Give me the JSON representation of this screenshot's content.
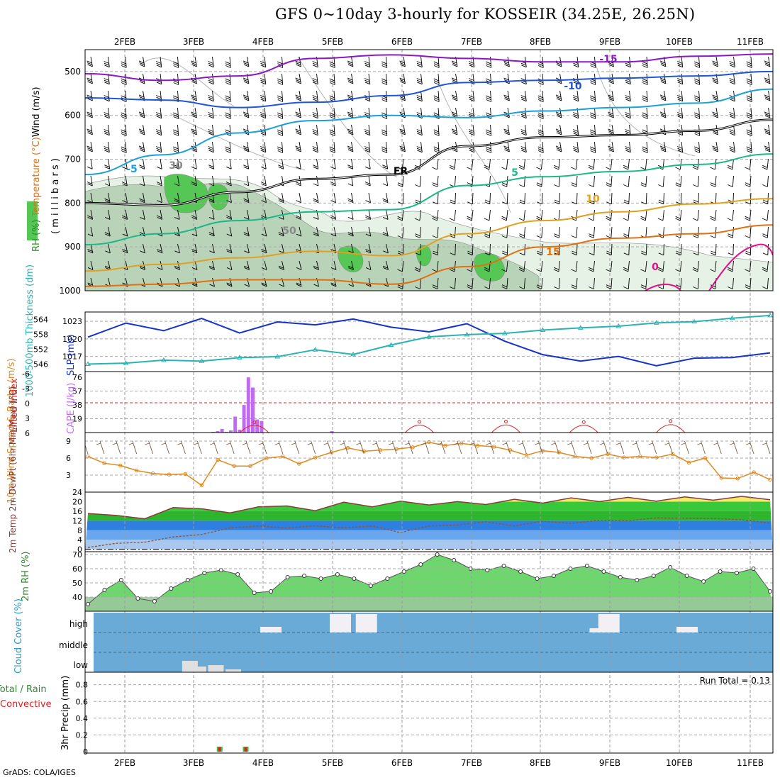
{
  "title": "GFS 0~10day 3-hourly for KOSSEIR (34.25E, 26.25N)",
  "credit": "GrADS: COLA/IGES",
  "colors": {
    "wind_barb": "#000000",
    "slp": "#1533cc",
    "thickness": "#2ab3b3",
    "cape": "#c06cf0",
    "lifted_index": "#e02020",
    "wind10m": "#e08a20",
    "temp_fill": "#38c038",
    "dewpt_fill": "#3f86e6",
    "rh2m": "#2dcc2d",
    "cloud_bg": "#6aaad6",
    "cloud_bar": "#f2f0f4",
    "precip_total": "#2dcc2d",
    "precip_conv": "#e02020",
    "rh_shade_light": "#e6f2e6",
    "rh_shade_mid": "#b9d3b9",
    "rh_shade_dark": "#55c755"
  },
  "chart_data": [
    {
      "type": "line",
      "panel": "upper-air",
      "x": [
        "2FEB",
        "3FEB",
        "4FEB",
        "5FEB",
        "6FEB",
        "7FEB",
        "8FEB",
        "9FEB",
        "10FEB",
        "11FEB"
      ],
      "ylabel_parts": [
        "Wind (m/s)",
        "Temperature (°C)",
        "RH (%)"
      ],
      "ylabel2": "( m i l l i b a r s )",
      "ytick_labels": [
        "500",
        "600",
        "700",
        "800",
        "900",
        "1000"
      ],
      "ylim": [
        450,
        1000
      ],
      "temperature_contours": [
        {
          "name": "-15",
          "level_mb": [
            505,
            520,
            510,
            470,
            462,
            470,
            478,
            478,
            465,
            460
          ]
        },
        {
          "name": "-10",
          "level_mb": [
            560,
            565,
            582,
            570,
            555,
            525,
            520,
            515,
            510,
            500
          ]
        },
        {
          "name": "-5",
          "level_mb": [
            735,
            690,
            640,
            612,
            600,
            605,
            590,
            582,
            572,
            540
          ]
        },
        {
          "name": "0",
          "level_mb": [
            800,
            805,
            775,
            745,
            735,
            670,
            650,
            645,
            635,
            610
          ]
        },
        {
          "name": "5",
          "level_mb": [
            895,
            870,
            840,
            820,
            815,
            760,
            740,
            728,
            712,
            688
          ]
        },
        {
          "name": "10",
          "level_mb": [
            955,
            940,
            925,
            910,
            920,
            870,
            840,
            820,
            802,
            790
          ]
        },
        {
          "name": "15",
          "level_mb": [
            990,
            985,
            975,
            975,
            985,
            945,
            900,
            880,
            870,
            850
          ]
        }
      ],
      "labels_visible": [
        "-15",
        "-10",
        "-5",
        "FR",
        "5",
        "10",
        "15",
        "0",
        "30",
        "50"
      ]
    },
    {
      "type": "line",
      "panel": "slp-thickness",
      "ylabel": "SLP (mb)",
      "ylabel2": "1000-500mb Thickness (dm)",
      "ytick_left": [
        "564",
        "558",
        "552",
        "546"
      ],
      "ytick_right": [
        "1023",
        "1020",
        "1017"
      ],
      "series": [
        {
          "name": "SLP (mb)",
          "values": [
            1020.3,
            1022.7,
            1021.4,
            1023.5,
            1021.0,
            1022.9,
            1022.4,
            1023.4,
            1022.0,
            1021.2,
            1022.6,
            1019.6,
            1017.3,
            1016.2,
            1017.0,
            1015.4,
            1016.7,
            1016.8,
            1017.6
          ]
        },
        {
          "name": "Thickness (dm)",
          "values": [
            546.0,
            546.4,
            547.6,
            547.2,
            548.6,
            549.0,
            551.8,
            549.9,
            553.7,
            557.0,
            557.9,
            558.4,
            559.7,
            560.6,
            561.3,
            562.6,
            563.1,
            564.5,
            565.6
          ]
        }
      ]
    },
    {
      "type": "bar",
      "panel": "cape-lifted-index",
      "ylabel": "CAPE (J/kg)",
      "ylabel2": "Lifted Index",
      "ytick_left": [
        "6",
        "3",
        "0",
        "-3",
        "-6"
      ],
      "ytick_right": [
        "76",
        "57",
        "38",
        "19"
      ],
      "cape_values": [
        0,
        0,
        0,
        0,
        0,
        0,
        0,
        0,
        0,
        0,
        0,
        1,
        2,
        5,
        1,
        3,
        22,
        4,
        38,
        76,
        62,
        18,
        16,
        0,
        0,
        0,
        0,
        0,
        0,
        0,
        0,
        0,
        0,
        0,
        0,
        0,
        0,
        0,
        2,
        0
      ],
      "lifted_index_peaks": [
        {
          "x": "3FEB+21h",
          "value": 4.0
        },
        {
          "x": "6FEB+6h",
          "value": 4.2
        },
        {
          "x": "7FEB+12h",
          "value": 4.3
        },
        {
          "x": "8FEB+15h",
          "value": 4.1
        },
        {
          "x": "9FEB+21h",
          "value": 4.5
        }
      ]
    },
    {
      "type": "line",
      "panel": "wind10m",
      "ylabel": "10m Wind Speed & Barbs (m/s)",
      "ytick_labels": [
        "9",
        "6",
        "3"
      ],
      "ylim": [
        0,
        10.5
      ],
      "values": [
        6.3,
        5.1,
        4.7,
        3.8,
        3.3,
        3.1,
        3.2,
        1.2,
        5.7,
        4.6,
        4.6,
        6.0,
        6.3,
        5.0,
        6.1,
        7.0,
        7.8,
        7.2,
        7.4,
        7.6,
        7.9,
        8.8,
        8.2,
        8.6,
        8.2,
        8.0,
        7.4,
        6.5,
        7.3,
        7.0,
        6.3,
        6.0,
        6.7,
        6.1,
        6.3,
        6.1,
        6.7,
        5.2,
        6.0,
        2.5,
        2.4,
        3.5,
        2.2
      ]
    },
    {
      "type": "area",
      "panel": "temp-dewpt",
      "ylabel": "2m Temp 2m DewPt (6hr Min/Max) (°C)",
      "ytick_labels": [
        "24",
        "20",
        "16",
        "12",
        "8",
        "4",
        "0"
      ],
      "ylim": [
        -1,
        24
      ],
      "series": [
        {
          "name": "2m Temp",
          "values": [
            15.0,
            14.2,
            12.8,
            17.5,
            17.0,
            15.3,
            17.8,
            18.2,
            16.2,
            19.8,
            17.8,
            20.2,
            18.6,
            20.0,
            18.8,
            21.0,
            19.4,
            21.6,
            20.0,
            21.8,
            20.2,
            22.0,
            20.6,
            22.2,
            20.8
          ]
        },
        {
          "name": "2m DewPt",
          "values": [
            0.8,
            2.5,
            3.0,
            5.2,
            6.2,
            9.0,
            9.8,
            8.9,
            9.9,
            9.0,
            9.8,
            7.0,
            9.8,
            10.2,
            11.6,
            9.8,
            11.8,
            10.9,
            12.2,
            12.0,
            13.2,
            13.0,
            12.9,
            12.4,
            11.0
          ]
        }
      ]
    },
    {
      "type": "area",
      "panel": "rh2m",
      "ylabel": "2m RH (%)",
      "ytick_labels": [
        "70",
        "60",
        "50",
        "40"
      ],
      "ylim": [
        30,
        72
      ],
      "values": [
        35,
        45,
        52,
        39,
        37,
        46,
        52,
        57,
        59,
        56,
        43,
        44,
        54,
        55,
        53,
        56,
        53,
        48,
        53,
        58,
        63,
        70,
        66,
        60,
        59,
        62,
        58,
        53,
        55,
        60,
        62,
        58,
        54,
        52,
        55,
        61,
        55,
        51,
        58,
        57,
        60,
        44
      ]
    },
    {
      "type": "bar",
      "panel": "cloud-cover",
      "ylabel": "Cloud Cover (%)",
      "ytick_labels": [
        "high",
        "middle",
        "low"
      ],
      "high_cloud_blocks": [
        "4FEB+0h",
        "5FEB+0h",
        "5FEB+9h",
        "8FEB+18h",
        "8FEB+21h",
        "10FEB+0h"
      ],
      "low_cloud_blocks": [
        "2FEB+21h",
        "3FEB+0h",
        "3FEB+6h",
        "3FEB+12h"
      ]
    },
    {
      "type": "bar",
      "panel": "precip",
      "ylabel": "3hr Precip (mm)",
      "ylabel2": "Total / Rain Convective",
      "ytick_labels": [
        "0.8",
        "0.6",
        "0.4",
        "0.2",
        "0"
      ],
      "ylim": [
        0,
        0.95
      ],
      "run_total_label": "Run Total = 0.13",
      "bars": [
        {
          "x": "3FEB+9h",
          "value": 0.06
        },
        {
          "x": "3FEB+18h",
          "value": 0.06
        }
      ]
    }
  ]
}
